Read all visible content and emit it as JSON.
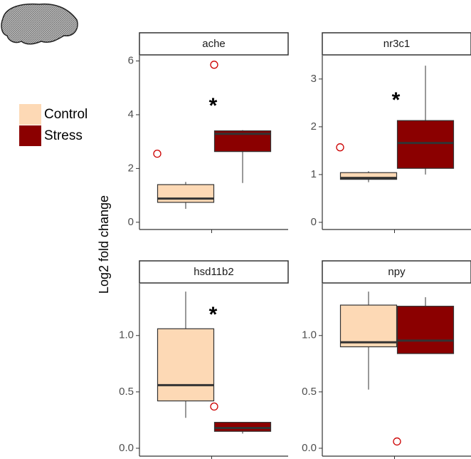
{
  "ylabel": "Log2 fold change",
  "chart_data": [
    {
      "type": "box",
      "title": "ache",
      "annotation": "*",
      "ylim": [
        -0.27,
        6.2
      ],
      "yticks": [
        0,
        2,
        4,
        6
      ],
      "series": [
        {
          "name": "Control",
          "color": "#fdd9b5",
          "min": 0.5,
          "q1": 0.74,
          "median": 0.88,
          "q3": 1.4,
          "max": 1.5,
          "outliers": [
            2.55
          ]
        },
        {
          "name": "Stress",
          "color": "#8b0000",
          "min": 1.46,
          "q1": 2.63,
          "median": 3.29,
          "q3": 3.4,
          "max": 3.43,
          "outliers": [
            5.86
          ]
        }
      ]
    },
    {
      "type": "box",
      "title": "nr3c1",
      "annotation": "*",
      "ylim": [
        -0.15,
        3.49
      ],
      "yticks": [
        0,
        1,
        2,
        3
      ],
      "series": [
        {
          "color": "#fdd9b5",
          "min": 0.84,
          "q1": 0.9,
          "median": 0.93,
          "q3": 1.04,
          "max": 1.07,
          "outliers": [
            1.57
          ]
        },
        {
          "color": "#8b0000",
          "min": 1.0,
          "q1": 1.13,
          "median": 1.66,
          "q3": 2.13,
          "max": 3.28,
          "outliers": []
        }
      ]
    },
    {
      "type": "box",
      "title": "hsd11b2",
      "annotation": "*",
      "ylim": [
        -0.07,
        1.46
      ],
      "yticks": [
        {
          "value": 0,
          "label": "0.0"
        },
        0.5,
        {
          "value": 1,
          "label": "1.0"
        }
      ],
      "series": [
        {
          "color": "#fdd9b5",
          "min": 0.27,
          "q1": 0.42,
          "median": 0.56,
          "q3": 1.06,
          "max": 1.39,
          "outliers": []
        },
        {
          "color": "#8b0000",
          "min": 0.13,
          "q1": 0.15,
          "median": 0.18,
          "q3": 0.23,
          "max": 0.23,
          "outliers": [
            0.37
          ]
        }
      ]
    },
    {
      "type": "box",
      "title": "npy",
      "ylim": [
        -0.07,
        1.46
      ],
      "yticks": [
        {
          "value": 0,
          "label": "0.0"
        },
        0.5,
        {
          "value": 1,
          "label": "1.0"
        }
      ],
      "series": [
        {
          "color": "#fdd9b5",
          "min": 0.52,
          "q1": 0.9,
          "median": 0.94,
          "q3": 1.27,
          "max": 1.39,
          "outliers": []
        },
        {
          "color": "#8b0000",
          "min": 0.84,
          "q1": 0.84,
          "median": 0.955,
          "q3": 1.26,
          "max": 1.34,
          "outliers": [
            0.06
          ]
        }
      ]
    }
  ]
}
